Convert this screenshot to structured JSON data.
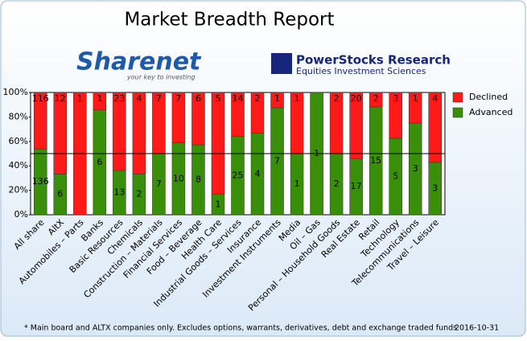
{
  "header": {
    "title": "Market Breadth Report",
    "logos": [
      {
        "name": "Sharenet",
        "tagline": "your key to investing"
      },
      {
        "name": "PowerStocks  Research",
        "tagline": "Equities Investment Sciences"
      }
    ]
  },
  "chart_data": {
    "type": "bar",
    "stacking": "percent",
    "categories": [
      "All share",
      "AltX",
      "Automobiles – Parts",
      "Banks",
      "Basic Resources",
      "Chemicals",
      "Construction – Materials",
      "Financial Services",
      "Food – Beverage",
      "Health Care",
      "Industrial Goods – Services",
      "Insurance",
      "Investment Instruments",
      "Media",
      "Oil – Gas",
      "Personal – Household Goods",
      "Real Estate",
      "Retail",
      "Technology",
      "Telecommunications",
      "Travel – Leisure"
    ],
    "series": [
      {
        "name": "Advanced",
        "color": "#3a8f0a",
        "values": [
          136,
          6,
          0,
          6,
          13,
          2,
          7,
          10,
          8,
          1,
          25,
          4,
          7,
          1,
          1,
          2,
          17,
          15,
          5,
          3,
          3
        ]
      },
      {
        "name": "Declined",
        "color": "#ff1a1a",
        "values": [
          116,
          12,
          1,
          1,
          23,
          4,
          7,
          7,
          6,
          5,
          14,
          2,
          1,
          1,
          0,
          2,
          20,
          2,
          3,
          1,
          4
        ]
      }
    ],
    "ylim": [
      0,
      100
    ],
    "yticks": [
      {
        "value": 0,
        "label": "0%"
      },
      {
        "value": 20,
        "label": "20%"
      },
      {
        "value": 40,
        "label": "40%"
      },
      {
        "value": 60,
        "label": "60%"
      },
      {
        "value": 80,
        "label": "80%"
      },
      {
        "value": 100,
        "label": "100%"
      }
    ],
    "hline": 50,
    "legend": "right"
  },
  "footer": {
    "note": "* Main board and ALTX companies only. Excludes options, warrants, derivatives, debt and exchange traded funds",
    "date": "2016-10-31"
  }
}
